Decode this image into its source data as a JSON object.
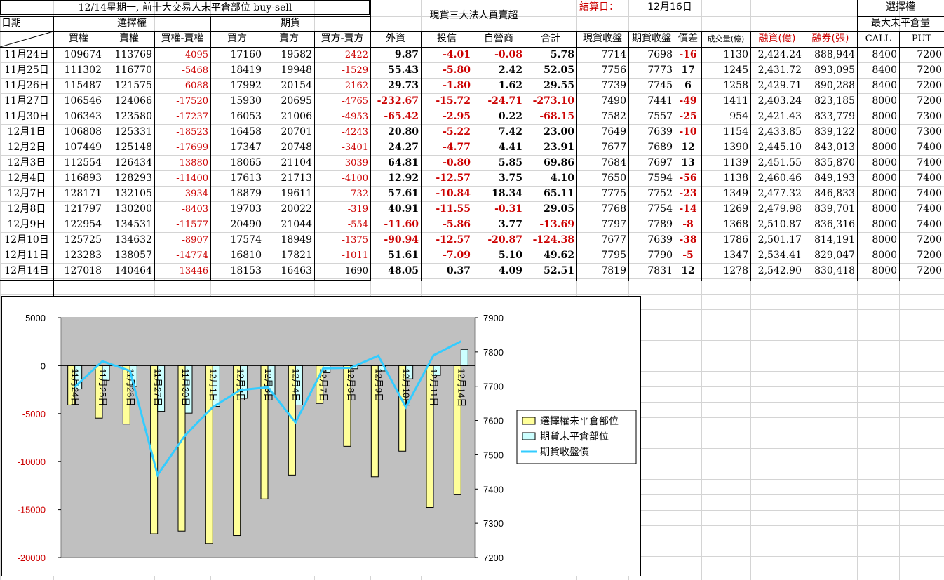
{
  "header": {
    "title": "12/14星期一, 前十大交易人未平倉部位 buy-sell",
    "spot_title": "現貨三大法人買賣超",
    "settle_label": "結算日：",
    "settle_date": "12月16日",
    "options_title": "選擇權",
    "max_oi": "最大未平倉量",
    "date_col": "日期",
    "options_group": "選擇權",
    "futures_group": "期貨",
    "columns": [
      "買權",
      "賣權",
      "買權-賣權",
      "買方",
      "賣方",
      "買方-賣方",
      "外資",
      "投信",
      "自營商",
      "合計",
      "現貨收盤",
      "期貨收盤",
      "價差",
      "成交量(億)",
      "融資(億)",
      "融券(張)",
      "CALL",
      "PUT"
    ]
  },
  "rows": [
    {
      "date": "11月24日",
      "call": "109674",
      "put": "113769",
      "cp": "-4095",
      "buy": "17160",
      "sell": "19582",
      "bs": "-2422",
      "foreign": "9.87",
      "trust": "-4.01",
      "dealer": "-0.08",
      "total": "5.78",
      "spot": "7714",
      "fut": "7698",
      "diff": "-16",
      "vol": "1130",
      "margin": "2,424.24",
      "short": "888,944",
      "maxcall": "8400",
      "maxput": "7200"
    },
    {
      "date": "11月25日",
      "call": "111302",
      "put": "116770",
      "cp": "-5468",
      "buy": "18419",
      "sell": "19948",
      "bs": "-1529",
      "foreign": "55.43",
      "trust": "-5.80",
      "dealer": "2.42",
      "total": "52.05",
      "spot": "7756",
      "fut": "7773",
      "diff": "17",
      "vol": "1245",
      "margin": "2,431.72",
      "short": "893,095",
      "maxcall": "8400",
      "maxput": "7200"
    },
    {
      "date": "11月26日",
      "call": "115487",
      "put": "121575",
      "cp": "-6088",
      "buy": "17992",
      "sell": "20154",
      "bs": "-2162",
      "foreign": "29.73",
      "trust": "-1.80",
      "dealer": "1.62",
      "total": "29.55",
      "spot": "7739",
      "fut": "7745",
      "diff": "6",
      "vol": "1258",
      "margin": "2,429.71",
      "short": "890,288",
      "maxcall": "8400",
      "maxput": "7200"
    },
    {
      "date": "11月27日",
      "call": "106546",
      "put": "124066",
      "cp": "-17520",
      "buy": "15930",
      "sell": "20695",
      "bs": "-4765",
      "foreign": "-232.67",
      "trust": "-15.72",
      "dealer": "-24.71",
      "total": "-273.10",
      "spot": "7490",
      "fut": "7441",
      "diff": "-49",
      "vol": "1411",
      "margin": "2,403.24",
      "short": "823,185",
      "maxcall": "8000",
      "maxput": "7200"
    },
    {
      "date": "11月30日",
      "call": "106343",
      "put": "123580",
      "cp": "-17237",
      "buy": "16053",
      "sell": "21006",
      "bs": "-4953",
      "foreign": "-65.42",
      "trust": "-2.95",
      "dealer": "0.22",
      "total": "-68.15",
      "spot": "7582",
      "fut": "7557",
      "diff": "-25",
      "vol": "954",
      "margin": "2,421.43",
      "short": "833,779",
      "maxcall": "8000",
      "maxput": "7300"
    },
    {
      "date": "12月1日",
      "call": "106808",
      "put": "125331",
      "cp": "-18523",
      "buy": "16458",
      "sell": "20701",
      "bs": "-4243",
      "foreign": "20.80",
      "trust": "-5.22",
      "dealer": "7.42",
      "total": "23.00",
      "spot": "7649",
      "fut": "7639",
      "diff": "-10",
      "vol": "1154",
      "margin": "2,433.85",
      "short": "839,122",
      "maxcall": "8000",
      "maxput": "7300"
    },
    {
      "date": "12月2日",
      "call": "107449",
      "put": "125148",
      "cp": "-17699",
      "buy": "17347",
      "sell": "20748",
      "bs": "-3401",
      "foreign": "24.27",
      "trust": "-4.77",
      "dealer": "4.41",
      "total": "23.91",
      "spot": "7677",
      "fut": "7689",
      "diff": "12",
      "vol": "1390",
      "margin": "2,445.10",
      "short": "843,013",
      "maxcall": "8000",
      "maxput": "7400"
    },
    {
      "date": "12月3日",
      "call": "112554",
      "put": "126434",
      "cp": "-13880",
      "buy": "18065",
      "sell": "21104",
      "bs": "-3039",
      "foreign": "64.81",
      "trust": "-0.80",
      "dealer": "5.85",
      "total": "69.86",
      "spot": "7684",
      "fut": "7697",
      "diff": "13",
      "vol": "1139",
      "margin": "2,451.55",
      "short": "835,870",
      "maxcall": "8000",
      "maxput": "7400"
    },
    {
      "date": "12月4日",
      "call": "116893",
      "put": "128293",
      "cp": "-11400",
      "buy": "17613",
      "sell": "21713",
      "bs": "-4100",
      "foreign": "12.92",
      "trust": "-12.57",
      "dealer": "3.75",
      "total": "4.10",
      "spot": "7650",
      "fut": "7594",
      "diff": "-56",
      "vol": "1138",
      "margin": "2,460.46",
      "short": "849,193",
      "maxcall": "8000",
      "maxput": "7400"
    },
    {
      "date": "12月7日",
      "call": "128171",
      "put": "132105",
      "cp": "-3934",
      "buy": "18879",
      "sell": "19611",
      "bs": "-732",
      "foreign": "57.61",
      "trust": "-10.84",
      "dealer": "18.34",
      "total": "65.11",
      "spot": "7775",
      "fut": "7752",
      "diff": "-23",
      "vol": "1349",
      "margin": "2,477.32",
      "short": "846,833",
      "maxcall": "8000",
      "maxput": "7400"
    },
    {
      "date": "12月8日",
      "call": "121797",
      "put": "130200",
      "cp": "-8403",
      "buy": "19703",
      "sell": "20022",
      "bs": "-319",
      "foreign": "40.91",
      "trust": "-11.55",
      "dealer": "-0.31",
      "total": "29.05",
      "spot": "7768",
      "fut": "7754",
      "diff": "-14",
      "vol": "1269",
      "margin": "2,479.98",
      "short": "839,701",
      "maxcall": "8000",
      "maxput": "7400"
    },
    {
      "date": "12月9日",
      "call": "122954",
      "put": "134531",
      "cp": "-11577",
      "buy": "20490",
      "sell": "21044",
      "bs": "-554",
      "foreign": "-11.60",
      "trust": "-5.86",
      "dealer": "3.77",
      "total": "-13.69",
      "spot": "7797",
      "fut": "7789",
      "diff": "-8",
      "vol": "1368",
      "margin": "2,510.87",
      "short": "836,316",
      "maxcall": "8000",
      "maxput": "7400"
    },
    {
      "date": "12月10日",
      "call": "125725",
      "put": "134632",
      "cp": "-8907",
      "buy": "17574",
      "sell": "18949",
      "bs": "-1375",
      "foreign": "-90.94",
      "trust": "-12.57",
      "dealer": "-20.87",
      "total": "-124.38",
      "spot": "7677",
      "fut": "7639",
      "diff": "-38",
      "vol": "1786",
      "margin": "2,501.17",
      "short": "814,191",
      "maxcall": "8000",
      "maxput": "7200"
    },
    {
      "date": "12月11日",
      "call": "123283",
      "put": "138057",
      "cp": "-14774",
      "buy": "16810",
      "sell": "17821",
      "bs": "-1011",
      "foreign": "51.61",
      "trust": "-7.09",
      "dealer": "5.10",
      "total": "49.62",
      "spot": "7795",
      "fut": "7790",
      "diff": "-5",
      "vol": "1347",
      "margin": "2,534.41",
      "short": "829,047",
      "maxcall": "8000",
      "maxput": "7200"
    },
    {
      "date": "12月14日",
      "call": "127018",
      "put": "140464",
      "cp": "-13446",
      "buy": "18153",
      "sell": "16463",
      "bs": "1690",
      "foreign": "48.05",
      "trust": "0.37",
      "dealer": "4.09",
      "total": "52.51",
      "spot": "7819",
      "fut": "7831",
      "diff": "12",
      "vol": "1278",
      "margin": "2,542.90",
      "short": "830,418",
      "maxcall": "8000",
      "maxput": "7200"
    }
  ],
  "chart_data": {
    "type": "bar",
    "categories": [
      "11月24日",
      "11月25日",
      "11月26日",
      "11月27日",
      "11月30日",
      "12月1日",
      "12月2日",
      "12月3日",
      "12月4日",
      "12月7日",
      "12月8日",
      "12月9日",
      "12月10日",
      "12月11日",
      "12月14日"
    ],
    "series": [
      {
        "name": "選擇權未平倉部位",
        "axis": "left",
        "type": "bar",
        "color": "#ffff99",
        "values": [
          -4095,
          -5468,
          -6088,
          -17520,
          -17237,
          -18523,
          -17699,
          -13880,
          -11400,
          -3934,
          -8403,
          -11577,
          -8907,
          -14774,
          -13446
        ]
      },
      {
        "name": "期貨未平倉部位",
        "axis": "left",
        "type": "bar",
        "color": "#ccffff",
        "values": [
          -2422,
          -1529,
          -2162,
          -4765,
          -4953,
          -4243,
          -3401,
          -3039,
          -4100,
          -732,
          -319,
          -554,
          -1375,
          -1011,
          1690
        ]
      },
      {
        "name": "期貨收盤價",
        "axis": "right",
        "type": "line",
        "color": "#33ccff",
        "values": [
          7698,
          7773,
          7745,
          7441,
          7557,
          7639,
          7689,
          7697,
          7594,
          7752,
          7754,
          7789,
          7639,
          7790,
          7831
        ]
      }
    ],
    "yleft": {
      "min": -20000,
      "max": 5000,
      "ticks": [
        "5000",
        "0",
        "-5000",
        "-10000",
        "-15000",
        "-20000"
      ]
    },
    "yright": {
      "min": 7200,
      "max": 7900,
      "ticks": [
        "7900",
        "7800",
        "7700",
        "7600",
        "7500",
        "7400",
        "7300",
        "7200"
      ]
    },
    "legend_position": "right",
    "plot_background": "#c0c0c0"
  }
}
